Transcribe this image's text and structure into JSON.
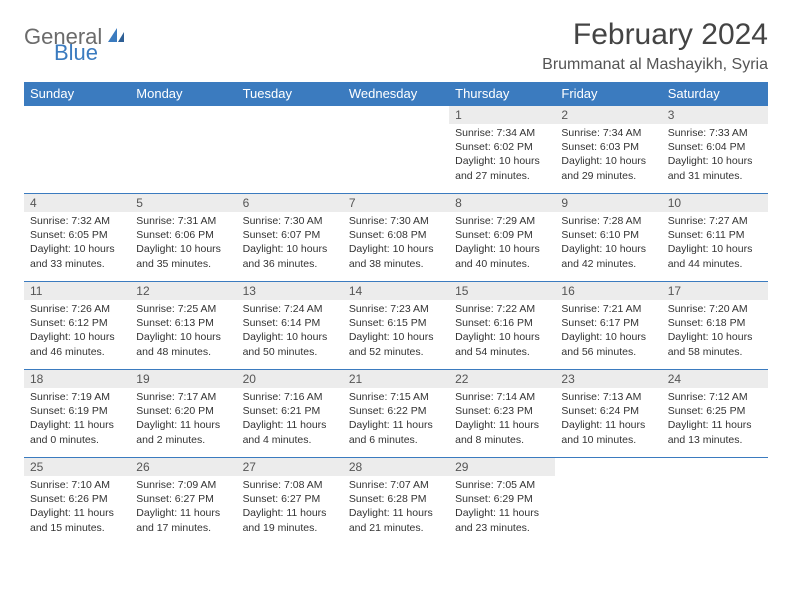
{
  "header": {
    "logo_general": "General",
    "logo_blue": "Blue",
    "month_title": "February 2024",
    "location": "Brummanat al Mashayikh, Syria"
  },
  "colors": {
    "header_bar": "#3b7bbf",
    "header_text": "#ffffff",
    "daynum_bg": "#ececec",
    "border": "#3b7bbf",
    "logo_gray": "#6b6b6b",
    "logo_blue": "#3b7bbf",
    "body_text": "#333333"
  },
  "weekdays": [
    "Sunday",
    "Monday",
    "Tuesday",
    "Wednesday",
    "Thursday",
    "Friday",
    "Saturday"
  ],
  "weeks": [
    [
      {
        "day": "",
        "sunrise": "",
        "sunset": "",
        "daylight": ""
      },
      {
        "day": "",
        "sunrise": "",
        "sunset": "",
        "daylight": ""
      },
      {
        "day": "",
        "sunrise": "",
        "sunset": "",
        "daylight": ""
      },
      {
        "day": "",
        "sunrise": "",
        "sunset": "",
        "daylight": ""
      },
      {
        "day": "1",
        "sunrise": "Sunrise: 7:34 AM",
        "sunset": "Sunset: 6:02 PM",
        "daylight": "Daylight: 10 hours and 27 minutes."
      },
      {
        "day": "2",
        "sunrise": "Sunrise: 7:34 AM",
        "sunset": "Sunset: 6:03 PM",
        "daylight": "Daylight: 10 hours and 29 minutes."
      },
      {
        "day": "3",
        "sunrise": "Sunrise: 7:33 AM",
        "sunset": "Sunset: 6:04 PM",
        "daylight": "Daylight: 10 hours and 31 minutes."
      }
    ],
    [
      {
        "day": "4",
        "sunrise": "Sunrise: 7:32 AM",
        "sunset": "Sunset: 6:05 PM",
        "daylight": "Daylight: 10 hours and 33 minutes."
      },
      {
        "day": "5",
        "sunrise": "Sunrise: 7:31 AM",
        "sunset": "Sunset: 6:06 PM",
        "daylight": "Daylight: 10 hours and 35 minutes."
      },
      {
        "day": "6",
        "sunrise": "Sunrise: 7:30 AM",
        "sunset": "Sunset: 6:07 PM",
        "daylight": "Daylight: 10 hours and 36 minutes."
      },
      {
        "day": "7",
        "sunrise": "Sunrise: 7:30 AM",
        "sunset": "Sunset: 6:08 PM",
        "daylight": "Daylight: 10 hours and 38 minutes."
      },
      {
        "day": "8",
        "sunrise": "Sunrise: 7:29 AM",
        "sunset": "Sunset: 6:09 PM",
        "daylight": "Daylight: 10 hours and 40 minutes."
      },
      {
        "day": "9",
        "sunrise": "Sunrise: 7:28 AM",
        "sunset": "Sunset: 6:10 PM",
        "daylight": "Daylight: 10 hours and 42 minutes."
      },
      {
        "day": "10",
        "sunrise": "Sunrise: 7:27 AM",
        "sunset": "Sunset: 6:11 PM",
        "daylight": "Daylight: 10 hours and 44 minutes."
      }
    ],
    [
      {
        "day": "11",
        "sunrise": "Sunrise: 7:26 AM",
        "sunset": "Sunset: 6:12 PM",
        "daylight": "Daylight: 10 hours and 46 minutes."
      },
      {
        "day": "12",
        "sunrise": "Sunrise: 7:25 AM",
        "sunset": "Sunset: 6:13 PM",
        "daylight": "Daylight: 10 hours and 48 minutes."
      },
      {
        "day": "13",
        "sunrise": "Sunrise: 7:24 AM",
        "sunset": "Sunset: 6:14 PM",
        "daylight": "Daylight: 10 hours and 50 minutes."
      },
      {
        "day": "14",
        "sunrise": "Sunrise: 7:23 AM",
        "sunset": "Sunset: 6:15 PM",
        "daylight": "Daylight: 10 hours and 52 minutes."
      },
      {
        "day": "15",
        "sunrise": "Sunrise: 7:22 AM",
        "sunset": "Sunset: 6:16 PM",
        "daylight": "Daylight: 10 hours and 54 minutes."
      },
      {
        "day": "16",
        "sunrise": "Sunrise: 7:21 AM",
        "sunset": "Sunset: 6:17 PM",
        "daylight": "Daylight: 10 hours and 56 minutes."
      },
      {
        "day": "17",
        "sunrise": "Sunrise: 7:20 AM",
        "sunset": "Sunset: 6:18 PM",
        "daylight": "Daylight: 10 hours and 58 minutes."
      }
    ],
    [
      {
        "day": "18",
        "sunrise": "Sunrise: 7:19 AM",
        "sunset": "Sunset: 6:19 PM",
        "daylight": "Daylight: 11 hours and 0 minutes."
      },
      {
        "day": "19",
        "sunrise": "Sunrise: 7:17 AM",
        "sunset": "Sunset: 6:20 PM",
        "daylight": "Daylight: 11 hours and 2 minutes."
      },
      {
        "day": "20",
        "sunrise": "Sunrise: 7:16 AM",
        "sunset": "Sunset: 6:21 PM",
        "daylight": "Daylight: 11 hours and 4 minutes."
      },
      {
        "day": "21",
        "sunrise": "Sunrise: 7:15 AM",
        "sunset": "Sunset: 6:22 PM",
        "daylight": "Daylight: 11 hours and 6 minutes."
      },
      {
        "day": "22",
        "sunrise": "Sunrise: 7:14 AM",
        "sunset": "Sunset: 6:23 PM",
        "daylight": "Daylight: 11 hours and 8 minutes."
      },
      {
        "day": "23",
        "sunrise": "Sunrise: 7:13 AM",
        "sunset": "Sunset: 6:24 PM",
        "daylight": "Daylight: 11 hours and 10 minutes."
      },
      {
        "day": "24",
        "sunrise": "Sunrise: 7:12 AM",
        "sunset": "Sunset: 6:25 PM",
        "daylight": "Daylight: 11 hours and 13 minutes."
      }
    ],
    [
      {
        "day": "25",
        "sunrise": "Sunrise: 7:10 AM",
        "sunset": "Sunset: 6:26 PM",
        "daylight": "Daylight: 11 hours and 15 minutes."
      },
      {
        "day": "26",
        "sunrise": "Sunrise: 7:09 AM",
        "sunset": "Sunset: 6:27 PM",
        "daylight": "Daylight: 11 hours and 17 minutes."
      },
      {
        "day": "27",
        "sunrise": "Sunrise: 7:08 AM",
        "sunset": "Sunset: 6:27 PM",
        "daylight": "Daylight: 11 hours and 19 minutes."
      },
      {
        "day": "28",
        "sunrise": "Sunrise: 7:07 AM",
        "sunset": "Sunset: 6:28 PM",
        "daylight": "Daylight: 11 hours and 21 minutes."
      },
      {
        "day": "29",
        "sunrise": "Sunrise: 7:05 AM",
        "sunset": "Sunset: 6:29 PM",
        "daylight": "Daylight: 11 hours and 23 minutes."
      },
      {
        "day": "",
        "sunrise": "",
        "sunset": "",
        "daylight": ""
      },
      {
        "day": "",
        "sunrise": "",
        "sunset": "",
        "daylight": ""
      }
    ]
  ]
}
